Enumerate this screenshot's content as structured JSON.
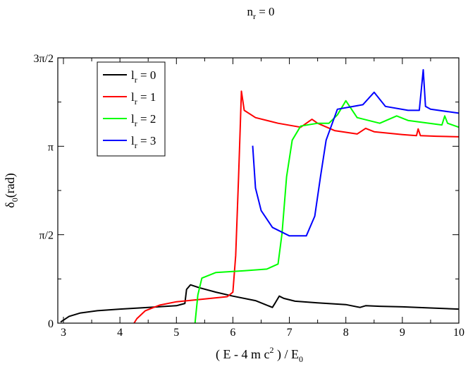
{
  "chart_data": {
    "type": "line",
    "title": {
      "main": "n",
      "sub": "r",
      "rest": " = 0"
    },
    "xlabel": {
      "pre": "( E - 4 m c",
      "sup": "2",
      "mid": " ) / E",
      "sub": "0"
    },
    "ylabel": {
      "pre": "δ",
      "sub": "0",
      "post": "(rad)"
    },
    "xlim": [
      2.9,
      10
    ],
    "ylim": [
      0,
      4.712
    ],
    "x_ticks": [
      {
        "v": 3,
        "label": "3"
      },
      {
        "v": 4,
        "label": "4"
      },
      {
        "v": 5,
        "label": "5"
      },
      {
        "v": 6,
        "label": "6"
      },
      {
        "v": 7,
        "label": "7"
      },
      {
        "v": 8,
        "label": "8"
      },
      {
        "v": 9,
        "label": "9"
      },
      {
        "v": 10,
        "label": "10"
      }
    ],
    "y_ticks": [
      {
        "v": 0,
        "label": "0"
      },
      {
        "v": 1.5708,
        "label": "π/2"
      },
      {
        "v": 3.1416,
        "label": "π"
      },
      {
        "v": 4.7124,
        "label": "3π/2"
      }
    ],
    "legend": {
      "position": "top-left"
    },
    "series": [
      {
        "name": {
          "pre": "l",
          "sub": "r",
          "post": " = 0"
        },
        "color": "#000000",
        "points": [
          [
            2.95,
            0.02
          ],
          [
            3.1,
            0.12
          ],
          [
            3.3,
            0.18
          ],
          [
            3.6,
            0.22
          ],
          [
            4.0,
            0.25
          ],
          [
            4.5,
            0.28
          ],
          [
            5.0,
            0.31
          ],
          [
            5.15,
            0.35
          ],
          [
            5.18,
            0.6
          ],
          [
            5.25,
            0.68
          ],
          [
            5.4,
            0.63
          ],
          [
            5.7,
            0.55
          ],
          [
            6.0,
            0.48
          ],
          [
            6.4,
            0.4
          ],
          [
            6.7,
            0.28
          ],
          [
            6.75,
            0.36
          ],
          [
            6.82,
            0.48
          ],
          [
            6.9,
            0.44
          ],
          [
            7.1,
            0.39
          ],
          [
            7.5,
            0.36
          ],
          [
            8.0,
            0.33
          ],
          [
            8.25,
            0.28
          ],
          [
            8.35,
            0.31
          ],
          [
            8.6,
            0.3
          ],
          [
            9.0,
            0.29
          ],
          [
            9.5,
            0.27
          ],
          [
            10.0,
            0.25
          ]
        ]
      },
      {
        "name": {
          "pre": "l",
          "sub": "r",
          "post": " = 1"
        },
        "color": "#ff0000",
        "points": [
          [
            4.25,
            0.0
          ],
          [
            4.3,
            0.08
          ],
          [
            4.45,
            0.22
          ],
          [
            4.7,
            0.32
          ],
          [
            5.0,
            0.38
          ],
          [
            5.5,
            0.43
          ],
          [
            5.9,
            0.47
          ],
          [
            6.0,
            0.55
          ],
          [
            6.05,
            1.2
          ],
          [
            6.1,
            2.6
          ],
          [
            6.13,
            3.5
          ],
          [
            6.15,
            4.12
          ],
          [
            6.2,
            3.78
          ],
          [
            6.4,
            3.65
          ],
          [
            6.8,
            3.55
          ],
          [
            7.2,
            3.48
          ],
          [
            7.4,
            3.62
          ],
          [
            7.5,
            3.55
          ],
          [
            7.8,
            3.42
          ],
          [
            8.2,
            3.36
          ],
          [
            8.35,
            3.46
          ],
          [
            8.5,
            3.4
          ],
          [
            9.0,
            3.35
          ],
          [
            9.25,
            3.33
          ],
          [
            9.28,
            3.45
          ],
          [
            9.32,
            3.33
          ],
          [
            9.6,
            3.32
          ],
          [
            10.0,
            3.31
          ]
        ]
      },
      {
        "name": {
          "pre": "l",
          "sub": "r",
          "post": " = 2"
        },
        "color": "#00ff00",
        "points": [
          [
            5.33,
            0.0
          ],
          [
            5.38,
            0.5
          ],
          [
            5.45,
            0.8
          ],
          [
            5.7,
            0.9
          ],
          [
            6.2,
            0.93
          ],
          [
            6.6,
            0.96
          ],
          [
            6.8,
            1.05
          ],
          [
            6.87,
            1.6
          ],
          [
            6.95,
            2.6
          ],
          [
            7.05,
            3.25
          ],
          [
            7.2,
            3.5
          ],
          [
            7.5,
            3.55
          ],
          [
            7.7,
            3.55
          ],
          [
            7.85,
            3.7
          ],
          [
            8.0,
            3.95
          ],
          [
            8.2,
            3.65
          ],
          [
            8.6,
            3.55
          ],
          [
            8.9,
            3.68
          ],
          [
            9.1,
            3.6
          ],
          [
            9.7,
            3.52
          ],
          [
            9.75,
            3.68
          ],
          [
            9.8,
            3.55
          ],
          [
            10.0,
            3.48
          ]
        ]
      },
      {
        "name": {
          "pre": "l",
          "sub": "r",
          "post": " = 3"
        },
        "color": "#0000ff",
        "points": [
          [
            6.35,
            3.15
          ],
          [
            6.4,
            2.4
          ],
          [
            6.5,
            2.0
          ],
          [
            6.7,
            1.7
          ],
          [
            7.0,
            1.55
          ],
          [
            7.3,
            1.55
          ],
          [
            7.45,
            1.9
          ],
          [
            7.55,
            2.6
          ],
          [
            7.65,
            3.25
          ],
          [
            7.85,
            3.8
          ],
          [
            8.3,
            3.88
          ],
          [
            8.5,
            4.1
          ],
          [
            8.7,
            3.85
          ],
          [
            9.1,
            3.78
          ],
          [
            9.3,
            3.78
          ],
          [
            9.37,
            4.5
          ],
          [
            9.41,
            3.85
          ],
          [
            9.5,
            3.8
          ],
          [
            10.0,
            3.73
          ]
        ]
      }
    ]
  }
}
